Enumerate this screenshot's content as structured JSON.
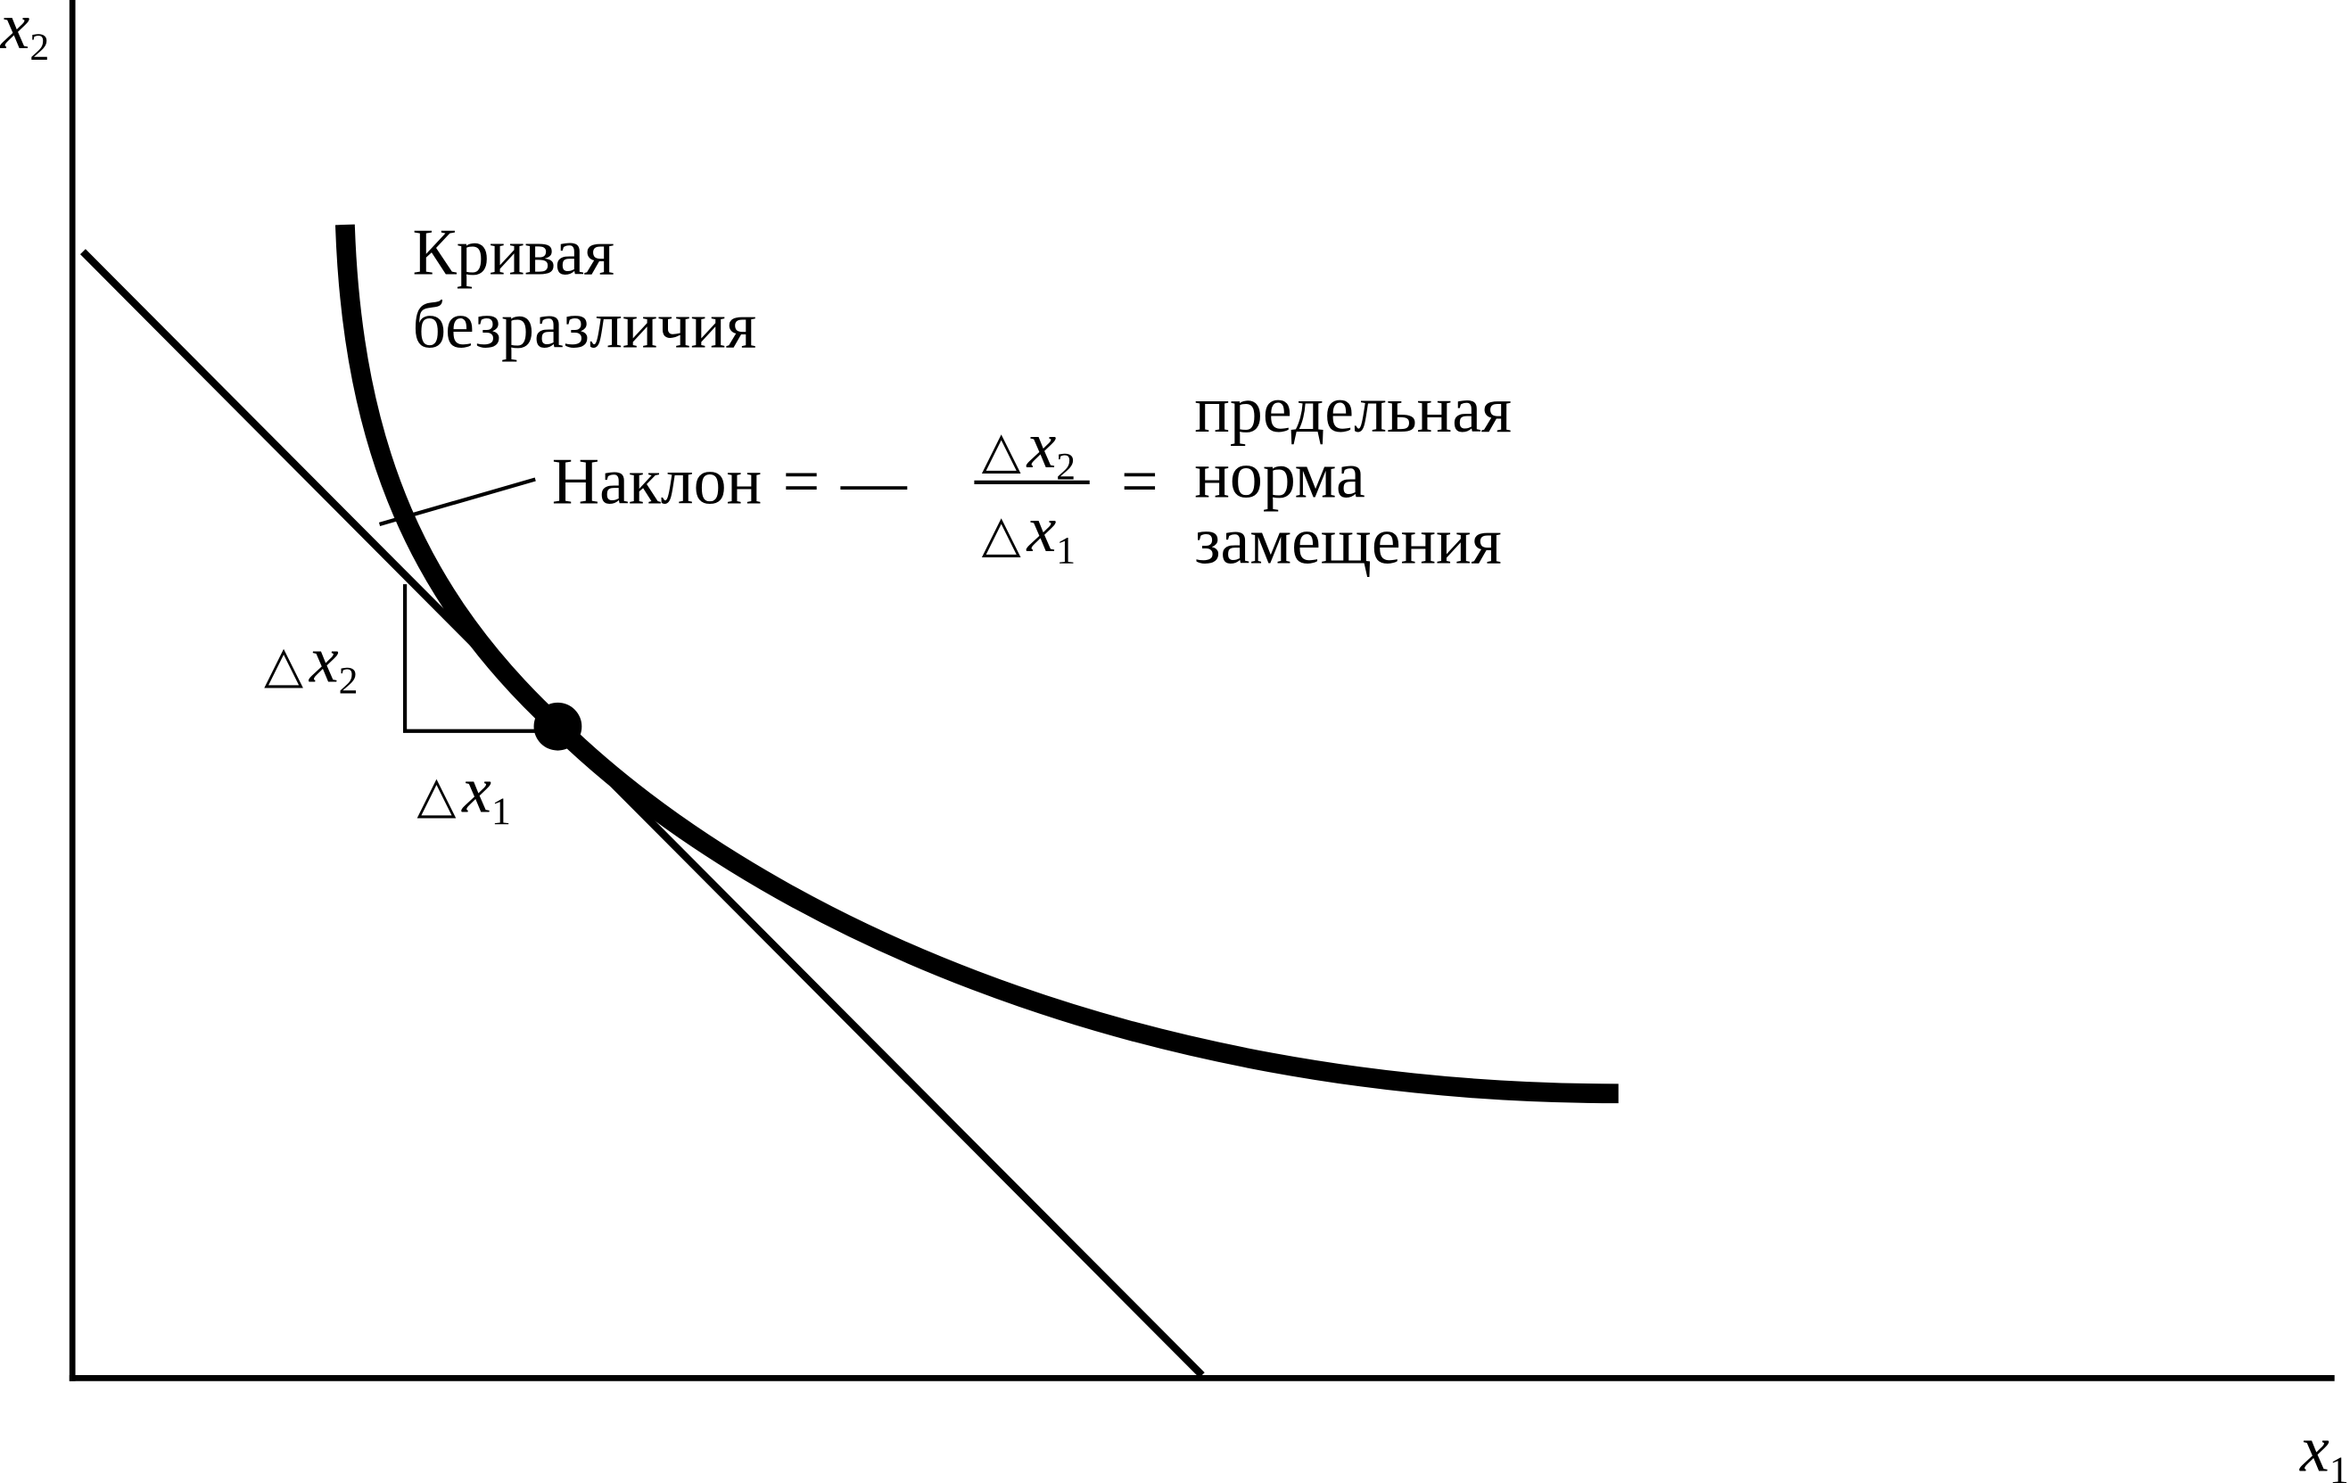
{
  "axes": {
    "y_label": {
      "symbol": "x",
      "subscript": "2"
    },
    "x_label": {
      "symbol": "x",
      "subscript": "1"
    }
  },
  "curve_label": [
    "Кривая",
    "безразличия"
  ],
  "slope": {
    "word": "Наклон",
    "equals": "=",
    "minus": "—",
    "numerator": {
      "delta": "△",
      "symbol": "x",
      "subscript": "2"
    },
    "denominator": {
      "delta": "△",
      "symbol": "x",
      "subscript": "1"
    },
    "result": [
      "предельная",
      "норма",
      "замещения"
    ]
  },
  "delta_x2": {
    "delta": "△",
    "symbol": "x",
    "subscript": "2"
  },
  "delta_x1": {
    "delta": "△",
    "symbol": "x",
    "subscript": "1"
  }
}
